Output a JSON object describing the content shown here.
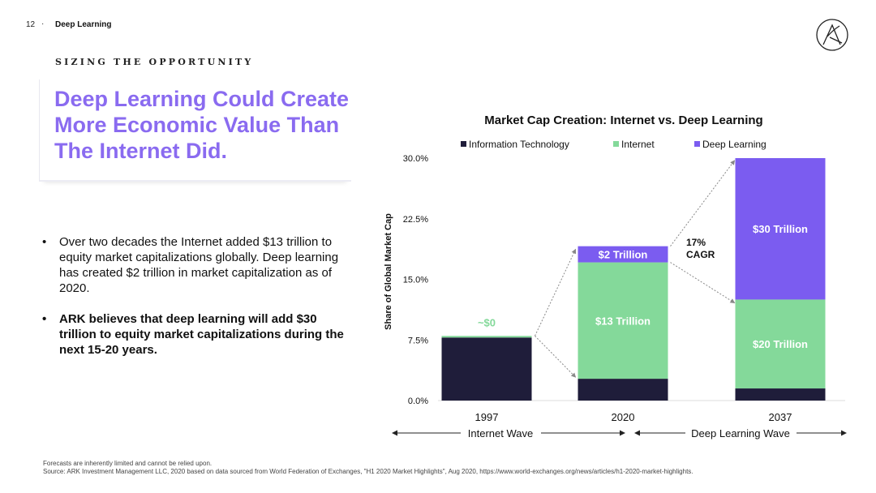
{
  "header": {
    "page_number": "12",
    "separator": "·",
    "section": "Deep Learning"
  },
  "kicker": "SIZING THE OPPORTUNITY",
  "title": "Deep Learning Could Create More Economic Value Than The Internet Did.",
  "bullets": [
    {
      "marker": "•",
      "text": "Over two decades the Internet added $13 trillion to equity market capitalizations globally. Deep learning has created $2 trillion in market capitalization as of 2020."
    },
    {
      "marker": "•",
      "text": "ARK believes that deep learning will add $30 trillion to equity market capitalizations during the next 15-20 years."
    }
  ],
  "footnote": {
    "line1": "Forecasts are inherently limited and cannot be relied upon.",
    "line2": "Source: ARK Investment Management LLC, 2020 based on data sourced from World Federation of Exchanges, \"H1 2020 Market Highlights\", Aug 2020, https://www.world-exchanges.org/news/articles/h1-2020-market-highlights."
  },
  "colors": {
    "accent": "#8a6bf0",
    "it": "#1f1d3a",
    "internet": "#84d99a",
    "deep_learning": "#7b5cf0"
  },
  "chart_data": {
    "type": "bar",
    "stacked": true,
    "title": "Market Cap Creation: Internet vs. Deep Learning",
    "ylabel": "Share of Global Market Cap",
    "ylim": [
      0,
      30
    ],
    "yticks": [
      "0.0%",
      "7.5%",
      "15.0%",
      "22.5%",
      "30.0%"
    ],
    "categories": [
      "1997",
      "2020",
      "2037"
    ],
    "series": [
      {
        "name": "Information Technology",
        "values": [
          7.8,
          2.7,
          1.5
        ]
      },
      {
        "name": "Internet",
        "values": [
          0.2,
          14.4,
          11.0
        ]
      },
      {
        "name": "Deep Learning",
        "values": [
          0.0,
          2.0,
          17.5
        ]
      }
    ],
    "data_labels": {
      "internet": [
        "~$0",
        "$13 Trillion",
        "$20 Trillion"
      ],
      "deep_learning": [
        "",
        "$2 Trillion",
        "$30 Trillion"
      ]
    },
    "annotations": {
      "cagr_line1": "17%",
      "cagr_line2": "CAGR"
    },
    "waves": {
      "left": "Internet Wave",
      "right": "Deep Learning Wave"
    }
  }
}
